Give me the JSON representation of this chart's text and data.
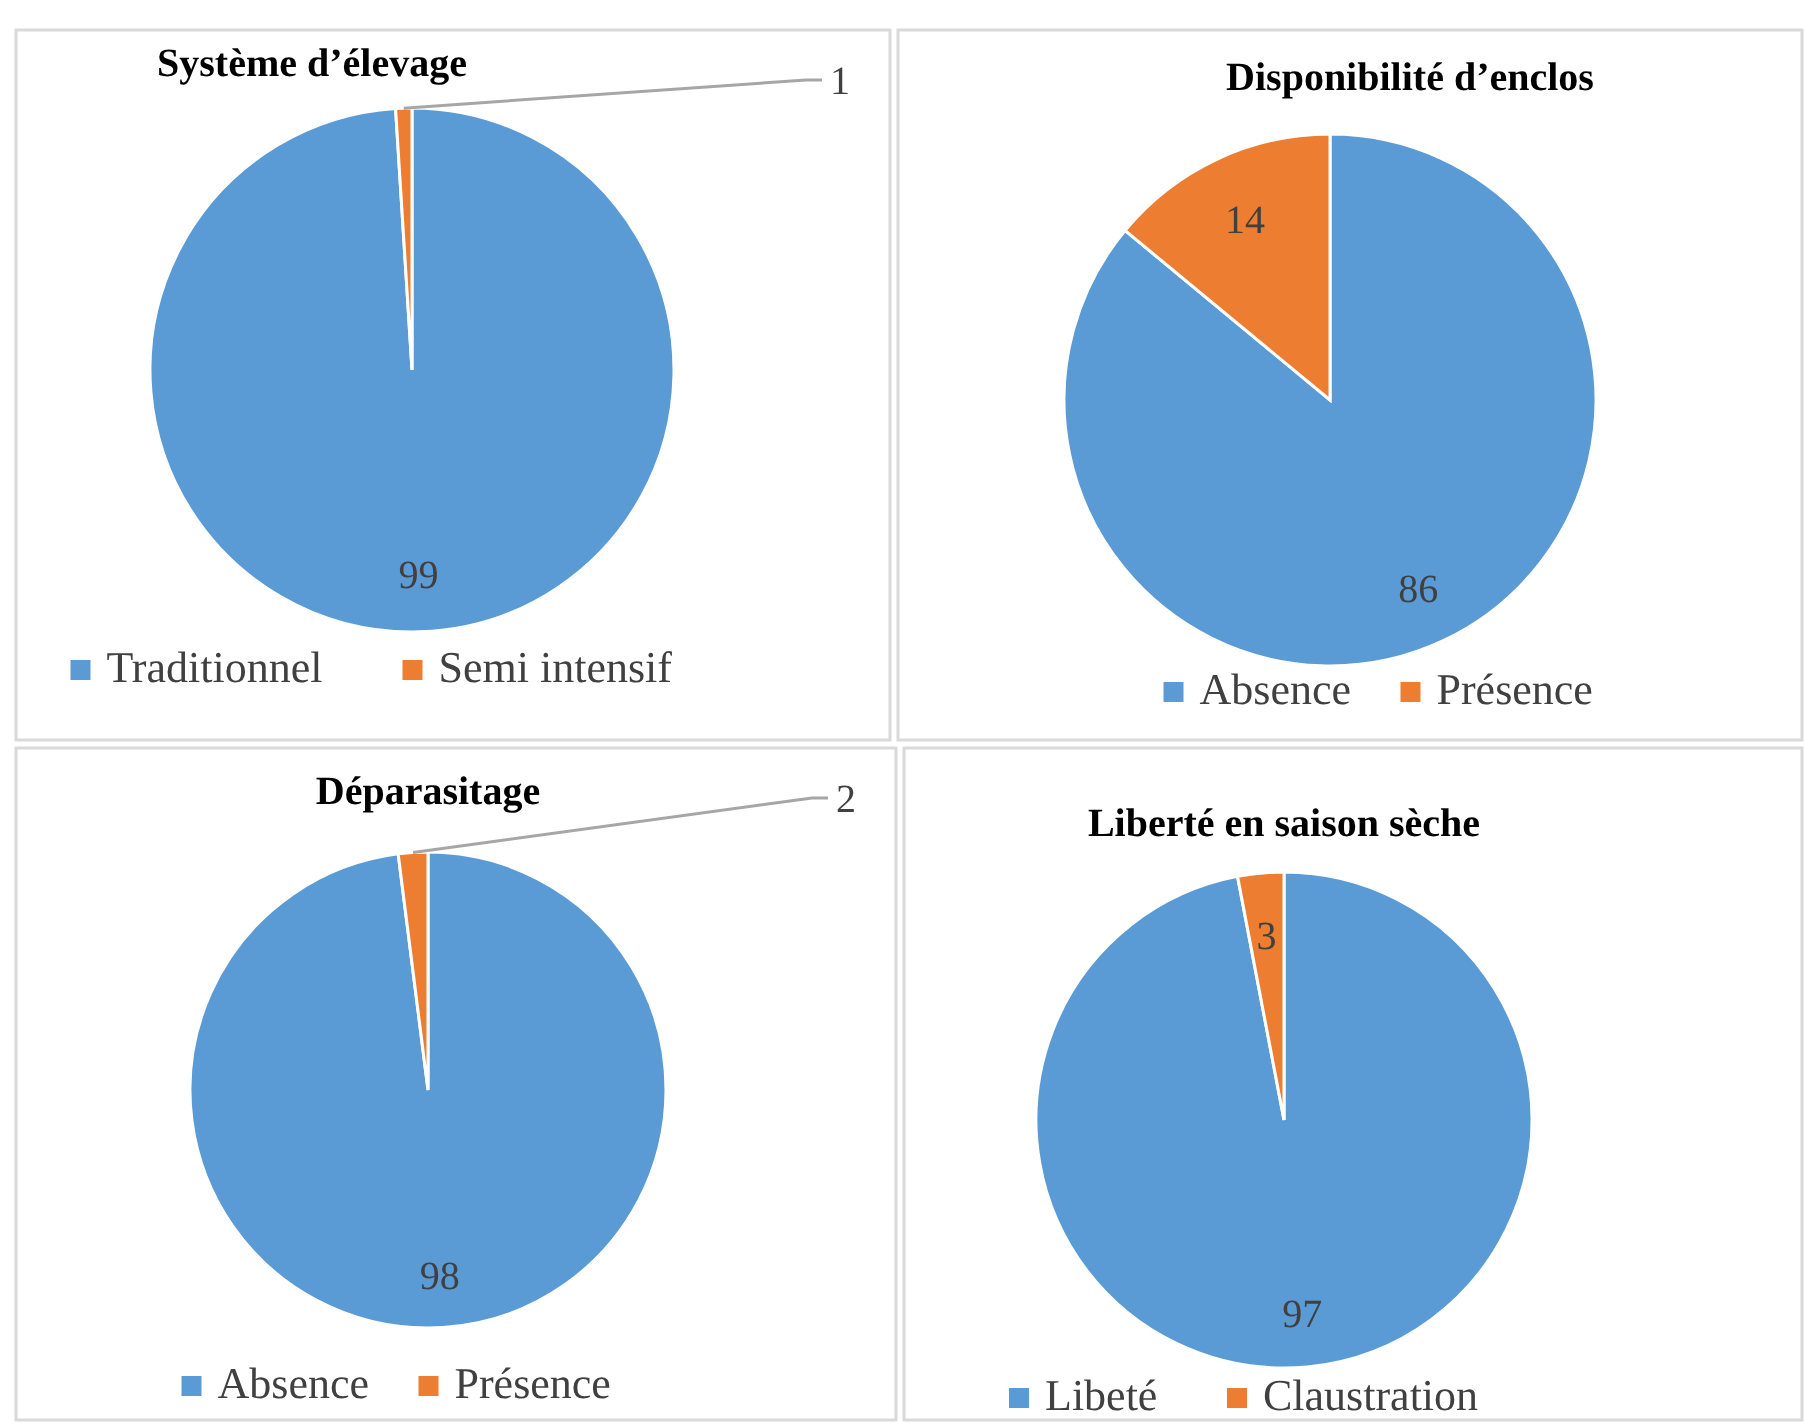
{
  "chart_data": [
    {
      "type": "pie",
      "title": "Système d’élevage",
      "categories": [
        "Traditionnel",
        "Semi intensif"
      ],
      "values": [
        99,
        1
      ],
      "colors": [
        "#5b9bd5",
        "#ed7d31"
      ],
      "data_labels": true,
      "legend": "bottom"
    },
    {
      "type": "pie",
      "title": "Disponibilité d’enclos",
      "categories": [
        "Absence",
        "Présence"
      ],
      "values": [
        86,
        14
      ],
      "colors": [
        "#5b9bd5",
        "#ed7d31"
      ],
      "data_labels": true,
      "legend": "bottom"
    },
    {
      "type": "pie",
      "title": "Déparasitage",
      "categories": [
        "Absence",
        "Présence"
      ],
      "values": [
        98,
        2
      ],
      "colors": [
        "#5b9bd5",
        "#ed7d31"
      ],
      "data_labels": true,
      "legend": "bottom"
    },
    {
      "type": "pie",
      "title": "Liberté en saison sèche",
      "categories": [
        "Libeté",
        "Claustration"
      ],
      "values": [
        97,
        3
      ],
      "colors": [
        "#5b9bd5",
        "#ed7d31"
      ],
      "data_labels": true,
      "legend": "bottom"
    }
  ]
}
